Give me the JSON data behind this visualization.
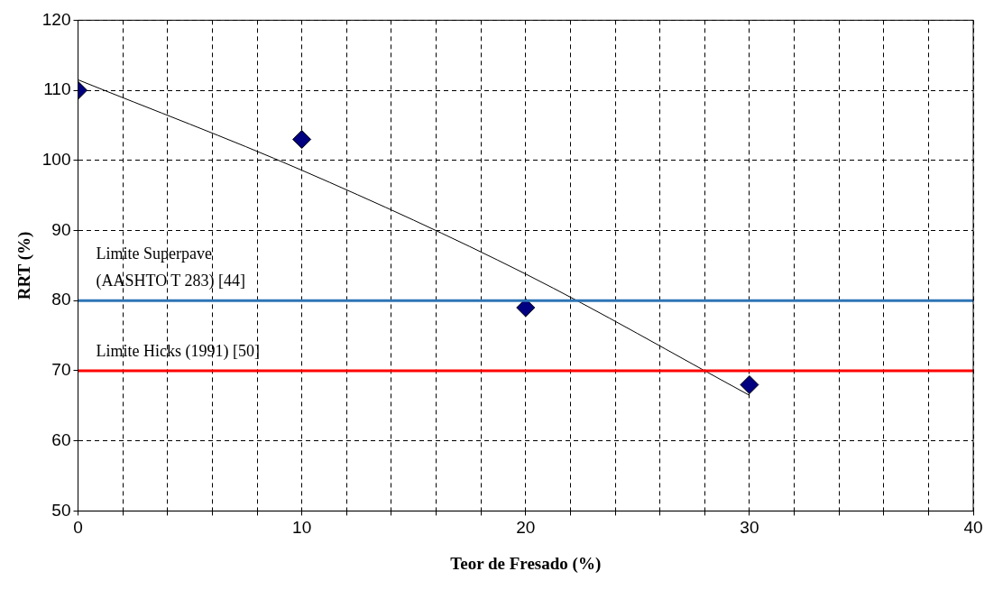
{
  "chart_data": {
    "type": "scatter",
    "xlabel": "Teor de Fresado (%)",
    "ylabel": "RRT (%)",
    "xlim": [
      0,
      40
    ],
    "ylim": [
      50,
      120
    ],
    "xticks": [
      0,
      {
        "value": 2,
        "label": null
      },
      {
        "value": 4,
        "label": null
      },
      {
        "value": 6,
        "label": null
      },
      {
        "value": 8,
        "label": null
      },
      10,
      {
        "value": 12,
        "label": null
      },
      {
        "value": 14,
        "label": null
      },
      {
        "value": 16,
        "label": null
      },
      {
        "value": 18,
        "label": null
      },
      20,
      {
        "value": 22,
        "label": null
      },
      {
        "value": 24,
        "label": null
      },
      {
        "value": 26,
        "label": null
      },
      {
        "value": 28,
        "label": null
      },
      30,
      {
        "value": 32,
        "label": null
      },
      {
        "value": 34,
        "label": null
      },
      {
        "value": 36,
        "label": null
      },
      {
        "value": 38,
        "label": null
      },
      40
    ],
    "yticks": [
      50,
      60,
      70,
      80,
      90,
      100,
      110,
      120
    ],
    "grid": true,
    "series": [
      {
        "marker": "diamond",
        "color": "#000080",
        "x": [
          0,
          10,
          20,
          30
        ],
        "values": [
          110,
          103,
          79,
          68
        ]
      },
      {
        "type": "line",
        "marker": "none",
        "color": "#000000",
        "x": [
          0,
          10,
          20,
          30
        ],
        "values": [
          111.5,
          98.6,
          83.8,
          66.5
        ]
      }
    ],
    "ref_lines": [
      {
        "axis": "y",
        "value": 80,
        "label": "Limite Superpave\n(AASHTO T 283) [44]",
        "color": "#2e75b6"
      },
      {
        "axis": "y",
        "value": 70,
        "label": "Limite Hicks (1991) [50]",
        "color": "#ff0000"
      }
    ]
  }
}
